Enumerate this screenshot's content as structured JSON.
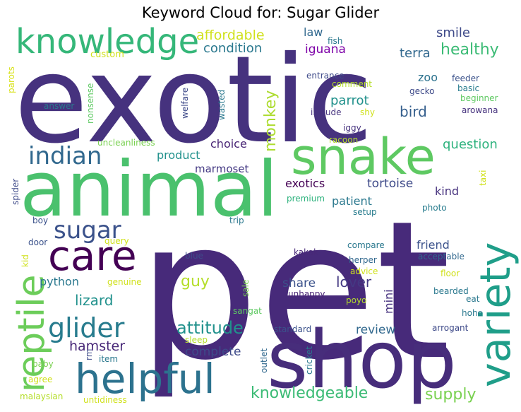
{
  "title": "Keyword Cloud for: Sugar Glider",
  "chart_data": {
    "type": "wordcloud",
    "title": "Keyword Cloud for: Sugar Glider",
    "words": [
      {
        "text": "pet",
        "color": "#472a7a"
      },
      {
        "text": "exotic",
        "color": "#46327e"
      },
      {
        "text": "animal",
        "color": "#4ac16d"
      },
      {
        "text": "shop",
        "color": "#472d7b"
      },
      {
        "text": "snake",
        "color": "#5ec962"
      },
      {
        "text": "variety",
        "color": "#1f9e89"
      },
      {
        "text": "knowledge",
        "color": "#35b779"
      },
      {
        "text": "helpful",
        "color": "#2c728e"
      },
      {
        "text": "reptile",
        "color": "#6ccd5a"
      },
      {
        "text": "care",
        "color": "#440154"
      },
      {
        "text": "indian",
        "color": "#31688e"
      },
      {
        "text": "sugar",
        "color": "#3b528b"
      },
      {
        "text": "glider",
        "color": "#287c8e"
      },
      {
        "text": "attitude",
        "color": "#21918c"
      },
      {
        "text": "knowledgeable",
        "color": "#3bbb75"
      },
      {
        "text": "supply",
        "color": "#7ad151"
      },
      {
        "text": "monkey",
        "color": "#addc30"
      },
      {
        "text": "healthy",
        "color": "#3bbb75"
      },
      {
        "text": "affordable",
        "color": "#d0e11c"
      },
      {
        "text": "condition",
        "color": "#2a788e"
      },
      {
        "text": "question",
        "color": "#2db27d"
      },
      {
        "text": "bird",
        "color": "#355f8d"
      },
      {
        "text": "smile",
        "color": "#3e4a89"
      },
      {
        "text": "terra",
        "color": "#31688e"
      },
      {
        "text": "iguana",
        "color": "#7e03a8"
      },
      {
        "text": "parrot",
        "color": "#21918c"
      },
      {
        "text": "lizard",
        "color": "#21918c"
      },
      {
        "text": "hamster",
        "color": "#482878"
      },
      {
        "text": "guy",
        "color": "#b5de2b"
      },
      {
        "text": "lover",
        "color": "#443983"
      },
      {
        "text": "review",
        "color": "#31688e"
      },
      {
        "text": "python",
        "color": "#2a788e"
      },
      {
        "text": "complete",
        "color": "#3e4a89"
      },
      {
        "text": "product",
        "color": "#21918c"
      },
      {
        "text": "choice",
        "color": "#482475"
      },
      {
        "text": "marmoset",
        "color": "#443983"
      },
      {
        "text": "exotics",
        "color": "#440154"
      },
      {
        "text": "tortoise",
        "color": "#3e4a89"
      },
      {
        "text": "kind",
        "color": "#46327e"
      },
      {
        "text": "patient",
        "color": "#2a788e"
      },
      {
        "text": "friend",
        "color": "#3b528b"
      },
      {
        "text": "share",
        "color": "#3b528b"
      },
      {
        "text": "mini",
        "color": "#46327e"
      },
      {
        "text": "zoo",
        "color": "#2c728e"
      },
      {
        "text": "law",
        "color": "#31688e"
      },
      {
        "text": "fish",
        "color": "#2a788e"
      },
      {
        "text": "custom",
        "color": "#d0e11c"
      },
      {
        "text": "parots",
        "color": "#d8e219"
      },
      {
        "text": "nonsense",
        "color": "#5ec962"
      },
      {
        "text": "answer",
        "color": "#2a788e"
      },
      {
        "text": "welfare",
        "color": "#3e4a89"
      },
      {
        "text": "wasted",
        "color": "#2a788e"
      },
      {
        "text": "entrance",
        "color": "#3e4a89"
      },
      {
        "text": "comment",
        "color": "#b5de2b"
      },
      {
        "text": "gecko",
        "color": "#3e4a89"
      },
      {
        "text": "feeder",
        "color": "#3b528b"
      },
      {
        "text": "basic",
        "color": "#287c8e"
      },
      {
        "text": "beginner",
        "color": "#5ec962"
      },
      {
        "text": "arowana",
        "color": "#46327e"
      },
      {
        "text": "include",
        "color": "#46327e"
      },
      {
        "text": "shy",
        "color": "#d0e11c"
      },
      {
        "text": "iggy",
        "color": "#46327e"
      },
      {
        "text": "racoon",
        "color": "#b5de2b"
      },
      {
        "text": "uncleanliness",
        "color": "#7ad151"
      },
      {
        "text": "taxi",
        "color": "#d0e11c"
      },
      {
        "text": "spider",
        "color": "#3e4a89"
      },
      {
        "text": "premium",
        "color": "#2db27d"
      },
      {
        "text": "setup",
        "color": "#287c8e"
      },
      {
        "text": "photo",
        "color": "#287c8e"
      },
      {
        "text": "trip",
        "color": "#2a788e"
      },
      {
        "text": "boy",
        "color": "#3b528b"
      },
      {
        "text": "door",
        "color": "#3b528b"
      },
      {
        "text": "query",
        "color": "#d0e11c"
      },
      {
        "text": "kid",
        "color": "#d0e11c"
      },
      {
        "text": "blue",
        "color": "#3e4a89"
      },
      {
        "text": "kakak",
        "color": "#482878"
      },
      {
        "text": "compare",
        "color": "#2a788e"
      },
      {
        "text": "acceptable",
        "color": "#31688e"
      },
      {
        "text": "herper",
        "color": "#31688e"
      },
      {
        "text": "advice",
        "color": "#d0e11c"
      },
      {
        "text": "floor",
        "color": "#d0e11c"
      },
      {
        "text": "genuine",
        "color": "#d0e11c"
      },
      {
        "text": "sale",
        "color": "#7ad151"
      },
      {
        "text": "unhappy",
        "color": "#482475"
      },
      {
        "text": "bearded",
        "color": "#2a788e"
      },
      {
        "text": "eat",
        "color": "#2a788e"
      },
      {
        "text": "poyo",
        "color": "#b5de2b"
      },
      {
        "text": "hoho",
        "color": "#2a788e"
      },
      {
        "text": "sangat",
        "color": "#5ec962"
      },
      {
        "text": "standard",
        "color": "#3b528b"
      },
      {
        "text": "arrogant",
        "color": "#3e4a89"
      },
      {
        "text": "sleep",
        "color": "#b5de2b"
      },
      {
        "text": "rm",
        "color": "#3e4a89"
      },
      {
        "text": "item",
        "color": "#2a788e"
      },
      {
        "text": "baby",
        "color": "#7ad151"
      },
      {
        "text": "outlet",
        "color": "#31688e"
      },
      {
        "text": "cricket",
        "color": "#2a788e"
      },
      {
        "text": "agree",
        "color": "#d0e11c"
      },
      {
        "text": "malaysian",
        "color": "#b5de2b"
      },
      {
        "text": "untidiness",
        "color": "#d0e11c"
      }
    ]
  }
}
